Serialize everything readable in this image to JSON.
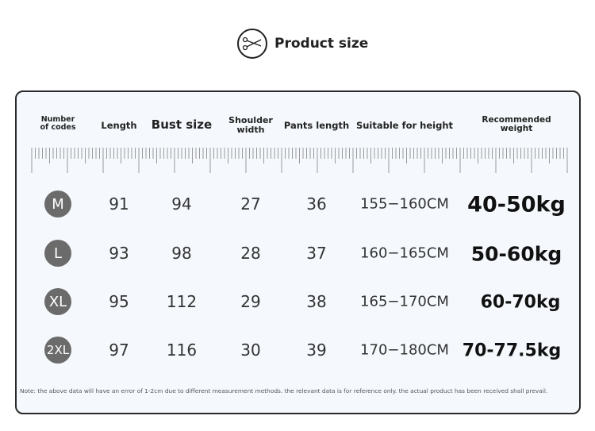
{
  "title": {
    "text": "Product size",
    "icon": "scissors-icon"
  },
  "headers": [
    "Number\nof codes",
    "Length",
    "Bust size",
    "Shoulder\nwidth",
    "Pants length",
    "Suitable for height",
    "Recommended\nweight"
  ],
  "rows": [
    {
      "size": "M",
      "length": "91",
      "bust": "94",
      "shoulder": "27",
      "pants": "36",
      "height": "155−160CM",
      "weight": "40-50kg"
    },
    {
      "size": "L",
      "length": "93",
      "bust": "98",
      "shoulder": "28",
      "pants": "37",
      "height": "160−165CM",
      "weight": "50-60kg"
    },
    {
      "size": "XL",
      "length": "95",
      "bust": "112",
      "shoulder": "29",
      "pants": "38",
      "height": "165−170CM",
      "weight": "60-70kg"
    },
    {
      "size": "2XL",
      "length": "97",
      "bust": "116",
      "shoulder": "30",
      "pants": "39",
      "height": "170−180CM",
      "weight": "70-77.5kg"
    }
  ],
  "note": "Note: the above data will have an error of 1-2cm due to different measurement methods. the relevant data is for reference only. the actual product has been received shall prevail."
}
